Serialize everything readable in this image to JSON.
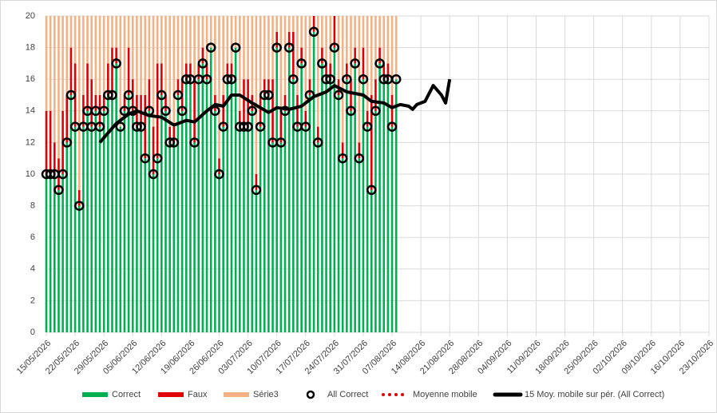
{
  "chart_data": {
    "type": "bar",
    "stacked": true,
    "grid": true,
    "x": [
      "15/05/2026",
      "16/05/2026",
      "17/05/2026",
      "18/05/2026",
      "19/05/2026",
      "20/05/2026",
      "21/05/2026",
      "22/05/2026",
      "23/05/2026",
      "24/05/2026",
      "25/05/2026",
      "26/05/2026",
      "27/05/2026",
      "28/05/2026",
      "29/05/2026",
      "30/05/2026",
      "31/05/2026",
      "01/06/2026",
      "02/06/2026",
      "03/06/2026",
      "04/06/2026",
      "05/06/2026",
      "06/06/2026",
      "07/06/2026",
      "08/06/2026",
      "09/06/2026",
      "10/06/2026",
      "11/06/2026",
      "12/06/2026",
      "13/06/2026",
      "14/06/2026",
      "15/06/2026",
      "16/06/2026",
      "17/06/2026",
      "18/06/2026",
      "19/06/2026",
      "20/06/2026",
      "21/06/2026",
      "22/06/2026",
      "23/06/2026",
      "24/06/2026",
      "25/06/2026",
      "26/06/2026",
      "27/06/2026",
      "28/06/2026",
      "29/06/2026",
      "30/06/2026",
      "01/07/2026",
      "02/07/2026",
      "03/07/2026",
      "04/07/2026",
      "05/07/2026",
      "06/07/2026",
      "07/07/2026",
      "08/07/2026",
      "09/07/2026",
      "10/07/2026",
      "11/07/2026",
      "12/07/2026",
      "13/07/2026",
      "14/07/2026",
      "15/07/2026",
      "16/07/2026",
      "17/07/2026",
      "18/07/2026",
      "19/07/2026",
      "20/07/2026",
      "21/07/2026",
      "22/07/2026",
      "23/07/2026",
      "24/07/2026",
      "25/07/2026",
      "26/07/2026",
      "27/07/2026",
      "28/07/2026",
      "29/07/2026",
      "30/07/2026",
      "31/07/2026",
      "01/08/2026",
      "02/08/2026",
      "03/08/2026",
      "04/08/2026",
      "05/08/2026",
      "06/08/2026",
      "07/08/2026",
      "08/08/2026"
    ],
    "series": [
      {
        "name": "Correct",
        "type": "bar",
        "color": "#00b050",
        "values": [
          10,
          10,
          10,
          9,
          10,
          12,
          15,
          13,
          8,
          13,
          14,
          13,
          14,
          13,
          14,
          15,
          15,
          17,
          13,
          14,
          15,
          14,
          13,
          13,
          11,
          14,
          10,
          11,
          15,
          14,
          12,
          12,
          15,
          14,
          16,
          16,
          12,
          16,
          17,
          16,
          18,
          14,
          10,
          13,
          16,
          16,
          18,
          13,
          13,
          13,
          14,
          9,
          13,
          15,
          15,
          12,
          18,
          12,
          14,
          18,
          16,
          13,
          17,
          13,
          15,
          19,
          12,
          17,
          16,
          16,
          18,
          15,
          11,
          16,
          14,
          17,
          11,
          16,
          13,
          9,
          14,
          17,
          16,
          16,
          13,
          16
        ]
      },
      {
        "name": "Faux",
        "type": "bar",
        "color": "#e00000",
        "values": [
          4,
          4,
          2,
          2,
          4,
          3,
          3,
          4,
          1,
          2,
          3,
          3,
          1,
          2,
          1,
          2,
          3,
          1,
          0,
          1,
          3,
          2,
          2,
          2,
          4,
          2,
          3,
          6,
          2,
          1,
          1,
          1,
          1,
          2,
          1,
          1,
          4,
          1,
          1,
          1,
          0,
          1,
          1,
          2,
          1,
          1,
          0,
          1,
          3,
          3,
          1,
          1,
          2,
          1,
          1,
          4,
          1,
          2,
          1,
          1,
          3,
          2,
          1,
          1,
          1,
          1,
          1,
          1,
          1,
          1,
          2,
          1,
          1,
          1,
          2,
          1,
          1,
          2,
          1,
          6,
          2,
          1,
          1,
          1,
          2,
          0
        ]
      },
      {
        "name": "Série3",
        "type": "bar",
        "color": "#f4b183",
        "values": [
          6,
          6,
          8,
          9,
          6,
          5,
          2,
          3,
          11,
          5,
          3,
          4,
          5,
          5,
          5,
          3,
          2,
          2,
          7,
          5,
          2,
          4,
          5,
          5,
          5,
          4,
          7,
          3,
          3,
          5,
          7,
          7,
          4,
          4,
          3,
          3,
          4,
          3,
          2,
          3,
          2,
          5,
          9,
          5,
          3,
          3,
          2,
          6,
          4,
          4,
          5,
          10,
          5,
          4,
          4,
          4,
          1,
          6,
          5,
          1,
          1,
          5,
          2,
          6,
          4,
          0,
          7,
          2,
          3,
          3,
          0,
          4,
          8,
          3,
          4,
          2,
          8,
          2,
          6,
          5,
          4,
          2,
          3,
          3,
          5,
          4
        ]
      },
      {
        "name": "All Correct",
        "type": "scatter",
        "color": "#000000",
        "values": [
          10,
          10,
          10,
          9,
          10,
          12,
          15,
          13,
          8,
          13,
          14,
          13,
          14,
          13,
          14,
          15,
          15,
          17,
          13,
          14,
          15,
          14,
          13,
          13,
          11,
          14,
          10,
          11,
          15,
          14,
          12,
          12,
          15,
          14,
          16,
          16,
          12,
          16,
          17,
          16,
          18,
          14,
          10,
          13,
          16,
          16,
          18,
          13,
          13,
          13,
          14,
          9,
          13,
          15,
          15,
          12,
          18,
          12,
          14,
          18,
          16,
          13,
          17,
          13,
          15,
          19,
          12,
          17,
          16,
          16,
          18,
          15,
          11,
          16,
          14,
          17,
          11,
          16,
          13,
          9,
          14,
          17,
          16,
          16,
          13,
          16
        ]
      },
      {
        "name": "Moyenne mobile",
        "type": "line",
        "line_style": "dotted",
        "color": "#e00000",
        "x": [],
        "values": []
      },
      {
        "name": "15 Moy. mobile sur pér. (All Correct)",
        "type": "line",
        "line_style": "solid",
        "color": "#000000",
        "x": [
          "28/05/2026",
          "01/06/2026",
          "04/06/2026",
          "06/06/2026",
          "09/06/2026",
          "12/06/2026",
          "15/06/2026",
          "18/06/2026",
          "20/06/2026",
          "23/06/2026",
          "25/06/2026",
          "27/06/2026",
          "29/06/2026",
          "01/07/2026",
          "04/07/2026",
          "08/07/2026",
          "10/07/2026",
          "13/07/2026",
          "16/07/2026",
          "19/07/2026",
          "22/07/2026",
          "24/07/2026",
          "27/07/2026",
          "31/07/2026",
          "02/08/2026",
          "05/08/2026",
          "07/08/2026",
          "09/08/2026",
          "11/08/2026",
          "12/08/2026",
          "13/08/2026",
          "15/08/2026",
          "17/08/2026",
          "19/08/2026",
          "20/08/2026",
          "21/08/2026"
        ],
        "values": [
          12.0,
          13.2,
          13.8,
          14.0,
          13.7,
          13.6,
          13.1,
          13.4,
          13.3,
          14.0,
          14.4,
          14.3,
          15.0,
          15.0,
          14.5,
          13.9,
          14.2,
          14.1,
          14.3,
          14.9,
          15.2,
          15.6,
          15.2,
          15.0,
          14.6,
          14.5,
          14.2,
          14.4,
          14.3,
          14.1,
          14.4,
          14.6,
          15.6,
          15.0,
          14.5,
          16.0
        ]
      }
    ],
    "xlim": [
      "15/05/2026",
      "23/10/2026"
    ],
    "xticks": [
      "15/05/2026",
      "22/05/2026",
      "29/05/2026",
      "05/06/2026",
      "12/06/2026",
      "19/06/2026",
      "26/06/2026",
      "03/07/2026",
      "10/07/2026",
      "17/07/2026",
      "24/07/2026",
      "31/07/2026",
      "07/08/2026",
      "14/08/2026",
      "21/08/2026",
      "28/08/2026",
      "04/09/2026",
      "11/09/2026",
      "18/09/2026",
      "25/09/2026",
      "02/10/2026",
      "09/10/2026",
      "16/10/2026",
      "23/10/2026"
    ],
    "ylim": [
      0,
      20
    ],
    "yticks": [
      0,
      2,
      4,
      6,
      8,
      10,
      12,
      14,
      16,
      18,
      20
    ]
  }
}
